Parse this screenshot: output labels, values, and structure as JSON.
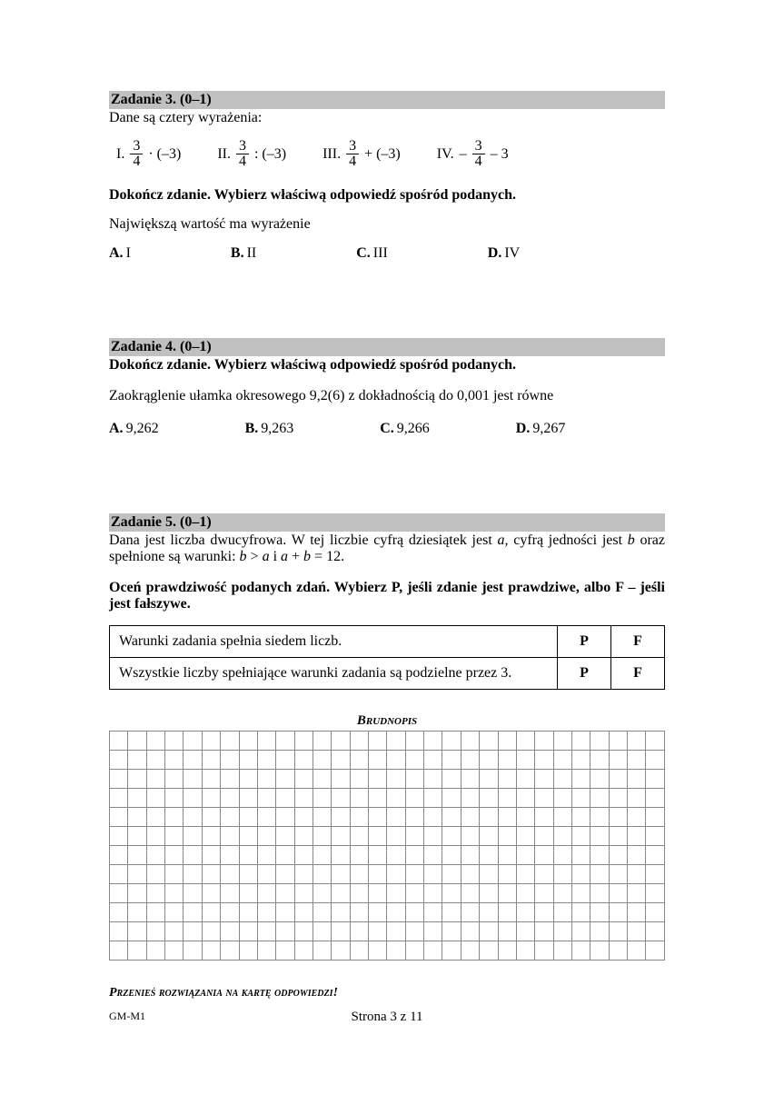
{
  "task3": {
    "header": "Zadanie 3. (0–1)",
    "intro": "Dane są cztery wyrażenia:",
    "expr1_label": "I.",
    "expr1_tail": " · (–3)",
    "expr2_label": "II.",
    "expr2_tail": " : (–3)",
    "expr3_label": "III.",
    "expr3_tail": " + (–3)",
    "expr4_label": "IV.",
    "expr4_neg": "–",
    "expr4_tail": " – 3",
    "frac_num": "3",
    "frac_den": "4",
    "instruction": "Dokończ zdanie. Wybierz właściwą odpowiedź spośród podanych.",
    "question": "Największą wartość ma wyrażenie",
    "optA_lbl": "A.",
    "optA_val": "I",
    "optB_lbl": "B.",
    "optB_val": "II",
    "optC_lbl": "C.",
    "optC_val": "III",
    "optD_lbl": "D.",
    "optD_val": "IV"
  },
  "task4": {
    "header": "Zadanie 4. (0–1)",
    "instruction": "Dokończ zdanie. Wybierz właściwą odpowiedź spośród podanych.",
    "question": "Zaokrąglenie ułamka okresowego 9,2(6) z dokładnością do 0,001 jest równe",
    "optA_lbl": "A.",
    "optA_val": "9,262",
    "optB_lbl": "B.",
    "optB_val": "9,263",
    "optC_lbl": "C.",
    "optC_val": "9,266",
    "optD_lbl": "D.",
    "optD_val": "9,267"
  },
  "task5": {
    "header": "Zadanie 5. (0–1)",
    "intro_1": "Dana jest liczba dwucyfrowa. W tej liczbie cyfrą dziesiątek jest ",
    "intro_a": "a",
    "intro_2": ", cyfrą jedności jest ",
    "intro_b": "b",
    "intro_3": " oraz spełnione są warunki: ",
    "intro_cond1a": "b",
    "intro_cond1op": " > ",
    "intro_cond1b": "a",
    "intro_and": " i ",
    "intro_cond2a": "a",
    "intro_cond2plus": " + ",
    "intro_cond2b": "b",
    "intro_cond2eq": " = 12.",
    "instruction": "Oceń prawdziwość podanych zdań. Wybierz P, jeśli zdanie jest prawdziwe, albo F – jeśli jest fałszywe.",
    "row1_text": "Warunki zadania spełnia siedem liczb.",
    "row2_text": "Wszystkie liczby spełniające warunki zadania są podzielne przez 3.",
    "P": "P",
    "F": "F"
  },
  "brudnopis": "Brudnopis",
  "transfer": "Przenieś rozwiązania na kartę odpowiedzi!",
  "code": "GM-M1",
  "page": "Strona 3 z 11",
  "grid": {
    "rows": 12,
    "cols": 30
  }
}
